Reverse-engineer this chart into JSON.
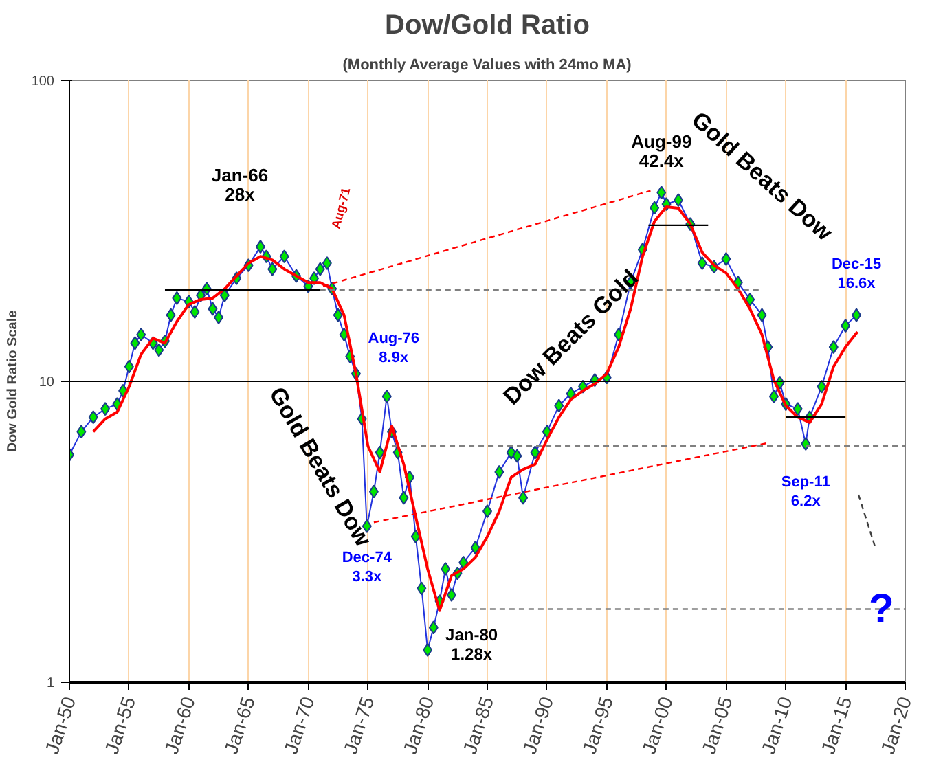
{
  "chart_data": {
    "type": "line",
    "title": "Dow/Gold Ratio",
    "subtitle": "(Monthly Average Values with 24mo MA)",
    "ylabel": "Dow Gold Ratio Scale",
    "log": "y",
    "xlim": [
      "1950-01",
      "2020-01"
    ],
    "ylim": [
      1,
      100
    ],
    "yticks": [
      1,
      10,
      100
    ],
    "xticks": [
      {
        "value": "1950-01",
        "label": "Jan-50"
      },
      {
        "value": "1955-01",
        "label": "Jan-55"
      },
      {
        "value": "1960-01",
        "label": "Jan-60"
      },
      {
        "value": "1965-01",
        "label": "Jan-65"
      },
      {
        "value": "1970-01",
        "label": "Jan-70"
      },
      {
        "value": "1975-01",
        "label": "Jan-75"
      },
      {
        "value": "1980-01",
        "label": "Jan-80"
      },
      {
        "value": "1985-01",
        "label": "Jan-85"
      },
      {
        "value": "1990-01",
        "label": "Jan-90"
      },
      {
        "value": "1995-01",
        "label": "Jan-95"
      },
      {
        "value": "2000-01",
        "label": "Jan-00"
      },
      {
        "value": "2005-01",
        "label": "Jan-05"
      },
      {
        "value": "2010-01",
        "label": "Jan-10"
      },
      {
        "value": "2015-01",
        "label": "Jan-15"
      },
      {
        "value": "2020-01",
        "label": "Jan-20"
      }
    ],
    "grid": "x",
    "series": [
      {
        "color": "#00e600",
        "marker": "diamond",
        "x": [
          "1950-01",
          "1951-01",
          "1952-01",
          "1953-01",
          "1954-01",
          "1954-07",
          "1955-01",
          "1955-07",
          "1956-01",
          "1957-01",
          "1957-07",
          "1958-01",
          "1958-07",
          "1959-01",
          "1960-01",
          "1960-07",
          "1961-01",
          "1961-07",
          "1962-01",
          "1962-07",
          "1963-01",
          "1964-01",
          "1965-01",
          "1966-01",
          "1966-07",
          "1967-01",
          "1968-01",
          "1969-01",
          "1970-01",
          "1970-07",
          "1971-01",
          "1971-08",
          "1972-01",
          "1972-07",
          "1973-01",
          "1973-07",
          "1974-01",
          "1974-07",
          "1974-12",
          "1975-07",
          "1976-01",
          "1976-08",
          "1977-01",
          "1977-07",
          "1978-01",
          "1978-07",
          "1979-01",
          "1979-07",
          "1980-01",
          "1980-07",
          "1981-01",
          "1981-07",
          "1982-01",
          "1982-07",
          "1983-01",
          "1984-01",
          "1985-01",
          "1986-01",
          "1987-01",
          "1987-07",
          "1988-01",
          "1989-01",
          "1990-01",
          "1991-01",
          "1992-01",
          "1993-01",
          "1994-01",
          "1995-01",
          "1996-01",
          "1997-01",
          "1998-01",
          "1999-01",
          "1999-08",
          "2000-01",
          "2001-01",
          "2002-01",
          "2003-01",
          "2004-01",
          "2005-01",
          "2006-01",
          "2007-01",
          "2008-01",
          "2008-07",
          "2009-01",
          "2009-07",
          "2010-01",
          "2011-01",
          "2011-09",
          "2012-01",
          "2013-01",
          "2014-01",
          "2015-01",
          "2015-12"
        ],
        "values": [
          5.7,
          6.8,
          7.6,
          8.1,
          8.4,
          9.3,
          11.2,
          13.4,
          14.3,
          13.4,
          12.7,
          13.6,
          16.6,
          18.9,
          18.4,
          17,
          19.3,
          20.3,
          17.4,
          16.3,
          19.3,
          22,
          24.3,
          28,
          26,
          23.6,
          26,
          22.4,
          20.7,
          22,
          23.6,
          24.7,
          20.3,
          16.6,
          14.3,
          12.1,
          10.6,
          7.5,
          3.3,
          4.3,
          5.8,
          8.9,
          6.8,
          5.8,
          4.1,
          4.8,
          3.05,
          2.05,
          1.28,
          1.52,
          1.86,
          2.38,
          1.95,
          2.3,
          2.5,
          2.8,
          3.7,
          5,
          5.8,
          5.65,
          4.1,
          5.8,
          6.8,
          8.3,
          9.1,
          9.6,
          10.1,
          10.3,
          14.3,
          21.3,
          27.4,
          37.7,
          42.4,
          38.8,
          40,
          33.3,
          24.7,
          24,
          25.5,
          21.3,
          18.7,
          16.6,
          13,
          8.9,
          9.9,
          8.4,
          8.1,
          6.2,
          7.6,
          9.6,
          13,
          15.3,
          16.6
        ]
      },
      {
        "color": "#ff0000",
        "marker": "none",
        "x": [
          "1952-01",
          "1953-01",
          "1954-01",
          "1955-01",
          "1956-01",
          "1957-01",
          "1958-01",
          "1959-01",
          "1960-01",
          "1961-01",
          "1962-01",
          "1963-01",
          "1964-01",
          "1965-01",
          "1966-01",
          "1967-01",
          "1968-01",
          "1969-01",
          "1970-01",
          "1971-01",
          "1972-01",
          "1973-01",
          "1974-01",
          "1975-01",
          "1976-01",
          "1977-01",
          "1978-01",
          "1979-01",
          "1980-01",
          "1981-01",
          "1982-01",
          "1983-01",
          "1984-01",
          "1985-01",
          "1986-01",
          "1987-01",
          "1988-01",
          "1989-01",
          "1990-01",
          "1991-01",
          "1992-01",
          "1993-01",
          "1994-01",
          "1995-01",
          "1996-01",
          "1997-01",
          "1998-01",
          "1999-01",
          "2000-01",
          "2001-01",
          "2002-01",
          "2003-01",
          "2004-01",
          "2005-01",
          "2006-01",
          "2007-01",
          "2008-01",
          "2009-01",
          "2010-01",
          "2011-01",
          "2012-01",
          "2013-01",
          "2014-01",
          "2015-01",
          "2016-01"
        ],
        "values": [
          6.8,
          7.5,
          7.9,
          9.6,
          12.3,
          13.9,
          13.4,
          15.8,
          18,
          18.7,
          18.9,
          20.3,
          22.4,
          24.7,
          26,
          25.3,
          23.6,
          22.4,
          21.3,
          21.3,
          20.3,
          16.6,
          10.6,
          6.1,
          5,
          7.1,
          5.3,
          3.55,
          2.38,
          1.73,
          2.26,
          2.38,
          2.6,
          3.05,
          3.7,
          4.8,
          5.1,
          5.3,
          6.4,
          7.6,
          8.7,
          9.3,
          9.8,
          10.6,
          13,
          17.4,
          26,
          34,
          38,
          37.6,
          33.3,
          26.8,
          24.3,
          22.9,
          20.3,
          17.4,
          14.3,
          10.1,
          8.3,
          7.6,
          7.3,
          8.4,
          11.2,
          13,
          14.6
        ]
      },
      {
        "color": "#000000",
        "marker": "none",
        "line_style": "solid",
        "x": [
          "1958-01",
          "1971-01"
        ],
        "values": [
          20.1,
          20.1
        ]
      },
      {
        "color": "#808080",
        "marker": "none",
        "line_style": "dashed",
        "x": [
          "1971-01",
          "2008-01"
        ],
        "values": [
          20.1,
          20.1
        ]
      },
      {
        "color": "#000000",
        "marker": "none",
        "line_style": "solid",
        "x": [
          "1998-07",
          "2003-07"
        ],
        "values": [
          33,
          33
        ]
      },
      {
        "color": "#000000",
        "marker": "none",
        "line_style": "solid",
        "x": [
          "2010-01",
          "2015-01"
        ],
        "values": [
          7.6,
          7.6
        ]
      },
      {
        "color": "#808080",
        "marker": "none",
        "line_style": "dashed",
        "x": [
          "1977-01",
          "2020-01"
        ],
        "values": [
          6.1,
          6.1
        ]
      },
      {
        "color": "#808080",
        "marker": "none",
        "line_style": "dashed",
        "x": [
          "1982-01",
          "2020-01"
        ],
        "values": [
          1.75,
          1.75
        ]
      },
      {
        "color": "#ff0000",
        "marker": "none",
        "line_style": "dashed",
        "x": [
          "1971-04",
          "1998-09"
        ],
        "values": [
          20.7,
          43
        ]
      },
      {
        "color": "#ff0000",
        "marker": "none",
        "line_style": "dashed",
        "x": [
          "1975-07",
          "2008-08"
        ],
        "values": [
          3.4,
          6.25
        ]
      },
      {
        "color": "#404040",
        "marker": "none",
        "line_style": "dashed",
        "x": [
          "2016-02",
          "2017-07"
        ],
        "values": [
          4.2,
          2.8
        ]
      }
    ],
    "ref_lines": [
      {
        "axis": "y",
        "value": 10,
        "color": "#000000",
        "line_style": "solid"
      }
    ],
    "annotations": [
      {
        "text": "Jan-66\n28x",
        "x": "1966-01",
        "y": 28
      },
      {
        "text": "Aug-71",
        "x": "1971-08",
        "y": 24.7
      },
      {
        "text": "Aug-76\n8.9x",
        "x": "1976-08",
        "y": 8.9
      },
      {
        "text": "Dec-74\n3.3x",
        "x": "1974-12",
        "y": 3.3
      },
      {
        "text": "Jan-80\n1.28x",
        "x": "1980-01",
        "y": 1.28
      },
      {
        "text": "Aug-99\n42.4x",
        "x": "1999-08",
        "y": 42.4
      },
      {
        "text": "Sep-11\n6.2x",
        "x": "2011-09",
        "y": 6.2
      },
      {
        "text": "Dec-15\n16.6x",
        "x": "2015-12",
        "y": 16.6
      },
      "Gold Beats Dow",
      "Dow Beats Gold",
      "Gold Beats Dow",
      "?"
    ]
  }
}
